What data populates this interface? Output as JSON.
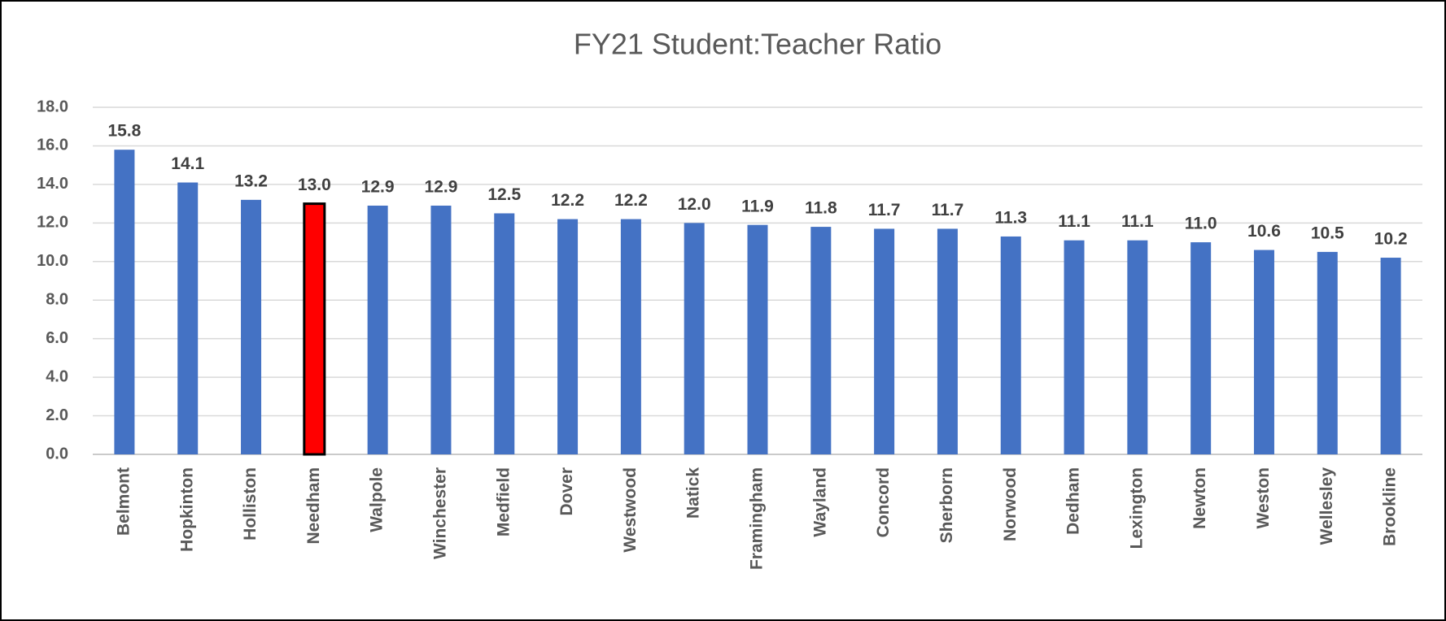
{
  "chart_data": {
    "type": "bar",
    "title": "FY21 Student:Teacher Ratio",
    "categories": [
      "Belmont",
      "Hopkinton",
      "Holliston",
      "Needham",
      "Walpole",
      "Winchester",
      "Medfield",
      "Dover",
      "Westwood",
      "Natick",
      "Framingham",
      "Wayland",
      "Concord",
      "Sherborn",
      "Norwood",
      "Dedham",
      "Lexington",
      "Newton",
      "Weston",
      "Wellesley",
      "Brookline"
    ],
    "values": [
      15.8,
      14.1,
      13.2,
      13.0,
      12.9,
      12.9,
      12.5,
      12.2,
      12.2,
      12.0,
      11.9,
      11.8,
      11.7,
      11.7,
      11.3,
      11.1,
      11.1,
      11.0,
      10.6,
      10.5,
      10.2
    ],
    "value_labels": [
      "15.8",
      "14.1",
      "13.2",
      "13.0",
      "12.9",
      "12.9",
      "12.5",
      "12.2",
      "12.2",
      "12.0",
      "11.9",
      "11.8",
      "11.7",
      "11.7",
      "11.3",
      "11.1",
      "11.1",
      "11.0",
      "10.6",
      "10.5",
      "10.2"
    ],
    "colors": [
      "#4472c4",
      "#4472c4",
      "#4472c4",
      "#ff0000",
      "#4472c4",
      "#4472c4",
      "#4472c4",
      "#4472c4",
      "#4472c4",
      "#4472c4",
      "#4472c4",
      "#4472c4",
      "#4472c4",
      "#4472c4",
      "#4472c4",
      "#4472c4",
      "#4472c4",
      "#4472c4",
      "#4472c4",
      "#4472c4",
      "#4472c4"
    ],
    "edgecolors": [
      "none",
      "none",
      "none",
      "#000000",
      "none",
      "none",
      "none",
      "none",
      "none",
      "none",
      "none",
      "none",
      "none",
      "none",
      "none",
      "none",
      "none",
      "none",
      "none",
      "none",
      "none"
    ],
    "ylim": [
      0,
      18
    ],
    "yticks": [
      {
        "value": 0,
        "label": "0.0"
      },
      {
        "value": 2,
        "label": "2.0"
      },
      {
        "value": 4,
        "label": "4.0"
      },
      {
        "value": 6,
        "label": "6.0"
      },
      {
        "value": 8,
        "label": "8.0"
      },
      {
        "value": 10,
        "label": "10.0"
      },
      {
        "value": 12,
        "label": "12.0"
      },
      {
        "value": 14,
        "label": "14.0"
      },
      {
        "value": 16,
        "label": "16.0"
      },
      {
        "value": 18,
        "label": "18.0"
      }
    ],
    "grid": true
  }
}
